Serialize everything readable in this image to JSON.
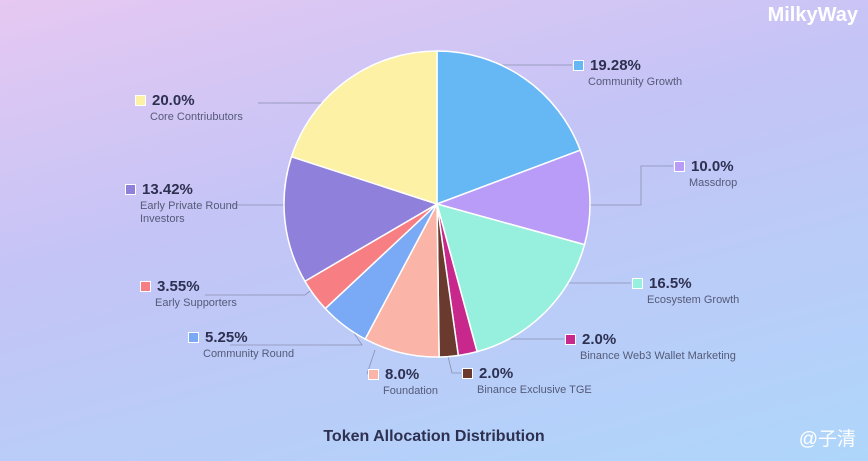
{
  "brand": "MilkyWay",
  "watermark": "@子清",
  "chart_data": {
    "type": "pie",
    "title": "Token Allocation Distribution",
    "categories": [
      "Community Growth",
      "Massdrop",
      "Ecosystem Growth",
      "Binance Web3 Wallet Marketing",
      "Binance Exclusive TGE",
      "Foundation",
      "Community Round",
      "Early Supporters",
      "Early Private Round Investors",
      "Core Contriubutors"
    ],
    "values": [
      19.28,
      10.0,
      16.5,
      2.0,
      2.0,
      8.0,
      5.25,
      3.55,
      13.42,
      20.0
    ],
    "value_labels": [
      "19.28%",
      "10.0%",
      "16.5%",
      "2.0%",
      "2.0%",
      "8.0%",
      "5.25%",
      "3.55%",
      "13.42%",
      "20.0%"
    ],
    "colors": [
      "#66b8f5",
      "#b99cf7",
      "#97f0de",
      "#c8288c",
      "#6b3a2e",
      "#fbb5a8",
      "#7aaaf5",
      "#f77f84",
      "#8f80db",
      "#fdf1a5"
    ]
  }
}
